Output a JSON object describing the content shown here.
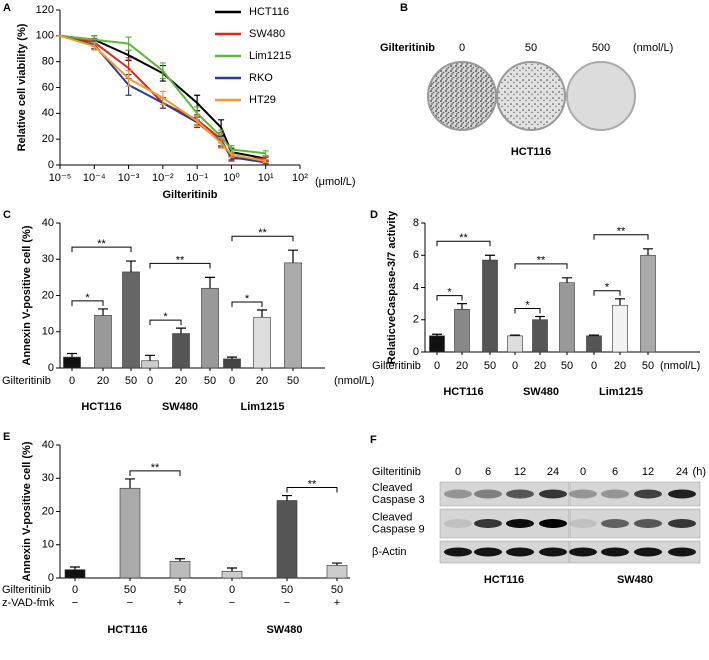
{
  "chart_data": [
    {
      "panel": "A",
      "type": "line",
      "xlabel": "Gilteritinib",
      "xunit": "(μmol/L)",
      "ylabel": "Relative cell viability (%)",
      "xscale": "log",
      "x": [
        1e-05,
        0.0001,
        0.001,
        0.01,
        0.1,
        0.5,
        1,
        10
      ],
      "xlim": [
        1e-05,
        100
      ],
      "xticks": [
        {
          "value": 1e-05,
          "label": "10⁻⁵"
        },
        {
          "value": 0.0001,
          "label": "10⁻⁴"
        },
        {
          "value": 0.001,
          "label": "10⁻³"
        },
        {
          "value": 0.01,
          "label": "10⁻²"
        },
        {
          "value": 0.1,
          "label": "10⁻¹"
        },
        {
          "value": 1,
          "label": "10⁰"
        },
        {
          "value": 10,
          "label": "10¹"
        },
        {
          "value": 100,
          "label": "10²"
        }
      ],
      "ylim": [
        0,
        120
      ],
      "yticks": [
        0,
        20,
        40,
        60,
        80,
        100,
        120
      ],
      "legend": "upper right",
      "series": [
        {
          "name": "HCT116",
          "color": "#000000",
          "values": [
            100,
            97,
            85,
            71,
            48,
            29,
            10,
            5
          ],
          "errors": [
            0,
            3,
            4,
            6,
            6,
            6,
            3,
            2
          ]
        },
        {
          "name": "SW480",
          "color": "#e0261f",
          "values": [
            100,
            95,
            75,
            48,
            35,
            20,
            5,
            5
          ],
          "errors": [
            0,
            3,
            8,
            4,
            4,
            5,
            2,
            1
          ]
        },
        {
          "name": "Lim1215",
          "color": "#5cb83a",
          "values": [
            100,
            97,
            94,
            73,
            40,
            22,
            12,
            9
          ],
          "errors": [
            0,
            3,
            5,
            6,
            5,
            5,
            3,
            2
          ]
        },
        {
          "name": "RKO",
          "color": "#2e3d93",
          "values": [
            100,
            93,
            62,
            48,
            33,
            18,
            6,
            2
          ],
          "errors": [
            0,
            3,
            8,
            4,
            4,
            4,
            2,
            1
          ]
        },
        {
          "name": "HT29",
          "color": "#f29a2e",
          "values": [
            100,
            92,
            67,
            52,
            34,
            17,
            8,
            3
          ],
          "errors": [
            0,
            3,
            6,
            5,
            4,
            4,
            2,
            1
          ]
        }
      ]
    },
    {
      "panel": "C",
      "type": "bar",
      "ylabel": "Annexin V-positive cell (%)",
      "row_labels": [
        "Gilteritinib"
      ],
      "unit": "(nmol/L)",
      "categories": [
        "0",
        "20",
        "50"
      ],
      "ylim": [
        0,
        40
      ],
      "yticks": [
        0,
        10,
        20,
        30,
        40
      ],
      "series": [
        {
          "name": "HCT116",
          "colors": [
            "#111111",
            "#999999",
            "#666666"
          ],
          "values": [
            3,
            14.5,
            26.5
          ],
          "errors": [
            1,
            1.8,
            3
          ]
        },
        {
          "name": "SW480",
          "colors": [
            "#cccccc",
            "#555555",
            "#999999"
          ],
          "values": [
            2,
            9.5,
            22
          ],
          "errors": [
            1.5,
            1.5,
            3
          ]
        },
        {
          "name": "Lim1215",
          "colors": [
            "#444444",
            "#dddddd",
            "#aaaaaa"
          ],
          "values": [
            2.5,
            14,
            29
          ],
          "errors": [
            0.5,
            2,
            3.5
          ]
        }
      ],
      "annotations": [
        "*",
        "**",
        "*",
        "**",
        "*",
        "**"
      ]
    },
    {
      "panel": "D",
      "type": "bar",
      "ylabel": "RelaticveCaspase-3/7 activity",
      "row_labels": [
        "Gilteritinib"
      ],
      "unit": "(nmol/L)",
      "categories": [
        "0",
        "20",
        "50"
      ],
      "ylim": [
        0,
        8
      ],
      "yticks": [
        0,
        2,
        4,
        6,
        8
      ],
      "series": [
        {
          "name": "HCT116",
          "colors": [
            "#111111",
            "#888888",
            "#555555"
          ],
          "values": [
            1,
            2.65,
            5.7
          ],
          "errors": [
            0.1,
            0.35,
            0.3
          ]
        },
        {
          "name": "SW480",
          "colors": [
            "#dddddd",
            "#555555",
            "#999999"
          ],
          "values": [
            1,
            2,
            4.3
          ],
          "errors": [
            0.05,
            0.2,
            0.3
          ]
        },
        {
          "name": "Lim1215",
          "colors": [
            "#555555",
            "#f2f2f2",
            "#aaaaaa"
          ],
          "values": [
            1,
            2.9,
            6
          ],
          "errors": [
            0.05,
            0.4,
            0.4
          ]
        }
      ],
      "annotations": [
        "*",
        "**",
        "*",
        "**",
        "*",
        "**"
      ]
    },
    {
      "panel": "E",
      "type": "bar",
      "ylabel": "Annexin V-positive cell (%)",
      "row_labels": [
        "Gilteritinib",
        "z-VAD-fmk"
      ],
      "categories": [
        [
          "0",
          "−"
        ],
        [
          "50",
          "−"
        ],
        [
          "50",
          "+"
        ]
      ],
      "ylim": [
        0,
        40
      ],
      "yticks": [
        0,
        10,
        20,
        30,
        40
      ],
      "series": [
        {
          "name": "HCT116",
          "colors": [
            "#111111",
            "#aaaaaa",
            "#bbbbbb"
          ],
          "values": [
            2.5,
            27,
            5
          ],
          "errors": [
            0.8,
            2.8,
            0.8
          ]
        },
        {
          "name": "SW480",
          "colors": [
            "#cccccc",
            "#555555",
            "#cccccc"
          ],
          "values": [
            2,
            23.3,
            3.8
          ],
          "errors": [
            1,
            1.5,
            0.7
          ]
        }
      ],
      "annotations": [
        "**",
        "**"
      ]
    }
  ],
  "panel_b": {
    "panel": "B",
    "label": "Gilteritinib",
    "doses": [
      "0",
      "50",
      "500"
    ],
    "unit": "(nmol/L)",
    "cell_line": "HCT116"
  },
  "panel_f": {
    "panel": "F",
    "label": "Gilteritinib",
    "times": [
      "0",
      "6",
      "12",
      "24"
    ],
    "unit": "(h)",
    "rows": [
      [
        "Cleaved",
        "Caspase 3"
      ],
      [
        "Cleaved",
        "Caspase 9"
      ],
      [
        "β-Actin"
      ]
    ],
    "cell_lines": [
      "HCT116",
      "SW480"
    ]
  }
}
